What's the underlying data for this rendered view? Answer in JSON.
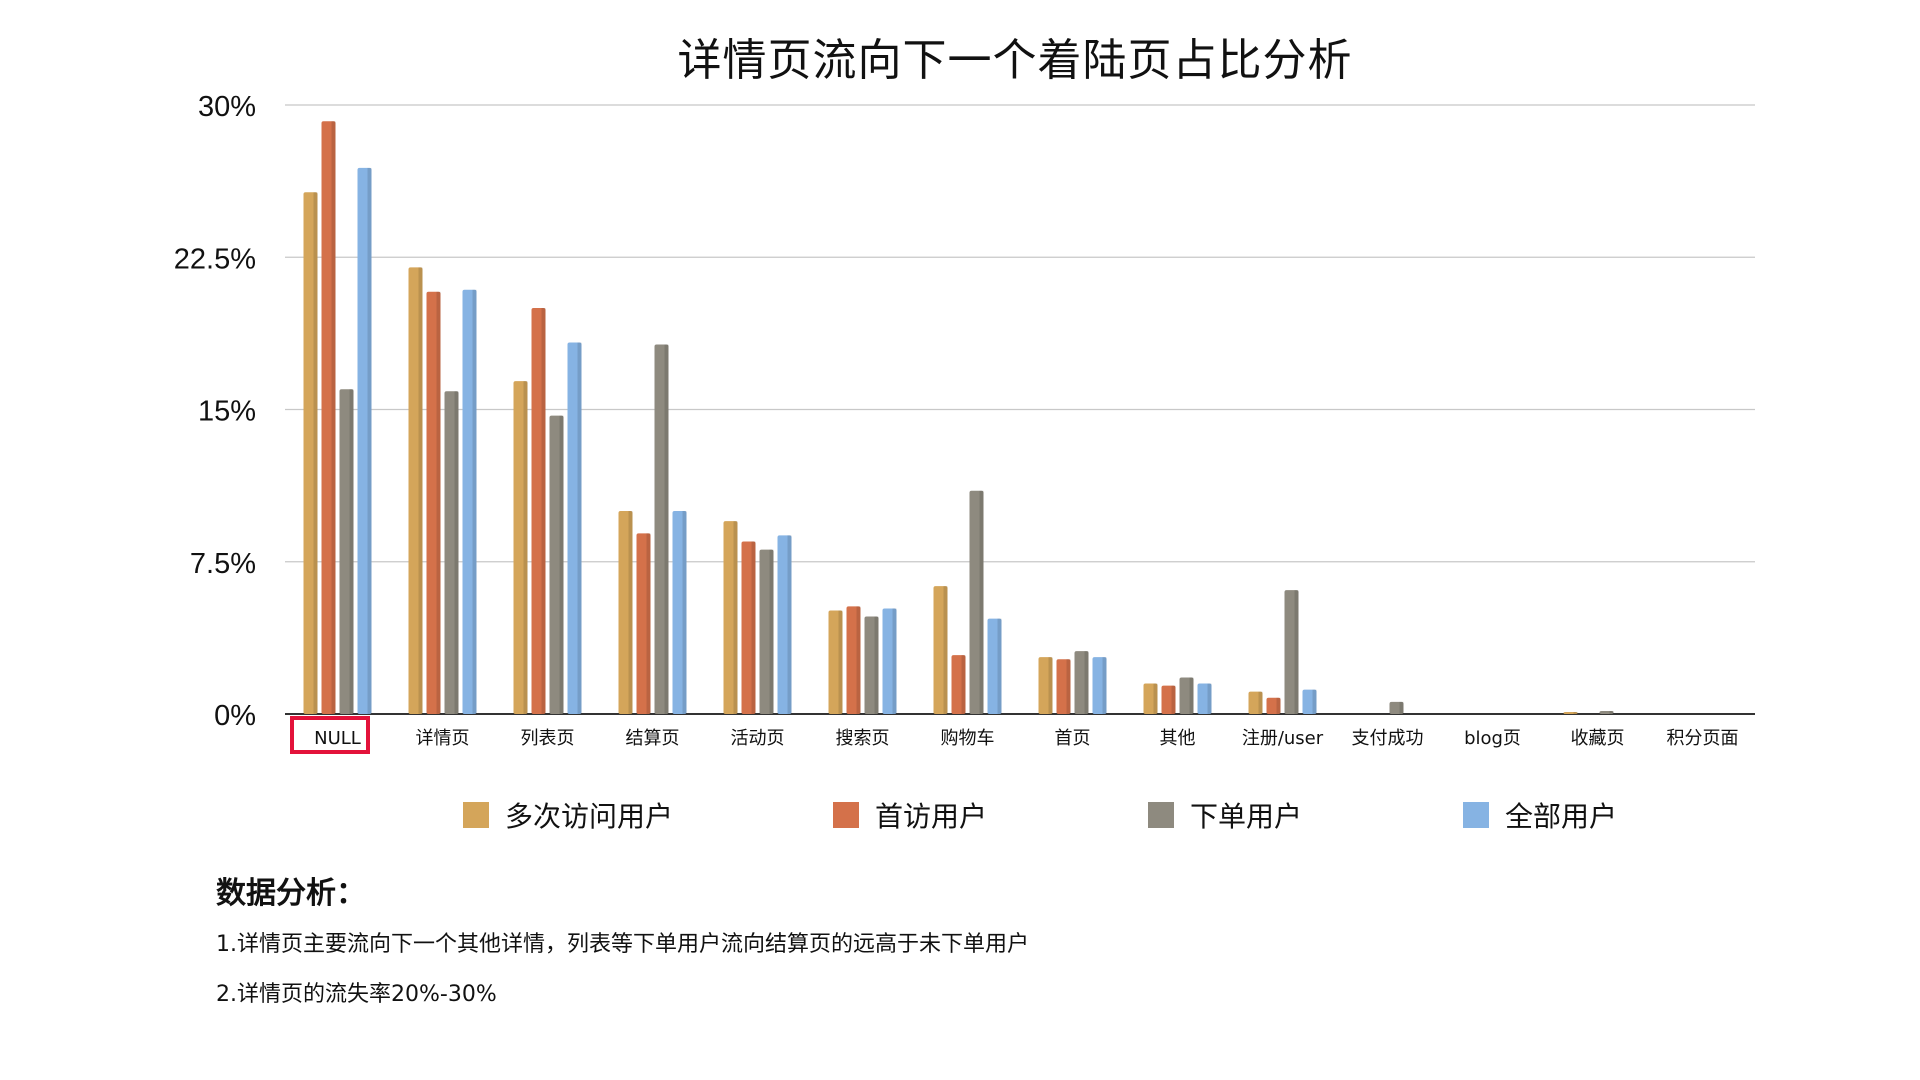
{
  "chart_data": {
    "type": "bar",
    "title": "详情页流向下一个着陆页占比分析",
    "categories": [
      "NULL",
      "详情页",
      "列表页",
      "结算页",
      "活动页",
      "搜索页",
      "购物车",
      "首页",
      "其他",
      "注册/user",
      "支付成功",
      "blog页",
      "收藏页",
      "积分页面"
    ],
    "series": [
      {
        "name": "多次访问用户",
        "color": "#d4a55a",
        "values": [
          25.7,
          22.0,
          16.4,
          10.0,
          9.5,
          5.1,
          6.3,
          2.8,
          1.5,
          1.1,
          0.0,
          0.0,
          0.1,
          0.0
        ]
      },
      {
        "name": "首访用户",
        "color": "#d4714a",
        "values": [
          29.2,
          20.8,
          20.0,
          8.9,
          8.5,
          5.3,
          2.9,
          2.7,
          1.4,
          0.8,
          0.0,
          0.0,
          0.0,
          0.0
        ]
      },
      {
        "name": "下单用户",
        "color": "#8e8a7f",
        "values": [
          16.0,
          15.9,
          14.7,
          18.2,
          8.1,
          4.8,
          11.0,
          3.1,
          1.8,
          6.1,
          0.6,
          0.0,
          0.15,
          0.0
        ]
      },
      {
        "name": "全部用户",
        "color": "#86b3e3",
        "values": [
          26.9,
          20.9,
          18.3,
          10.0,
          8.8,
          5.2,
          4.7,
          2.8,
          1.5,
          1.2,
          0.0,
          0.0,
          0.0,
          0.0
        ]
      }
    ],
    "yticks": [
      "0%",
      "7.5%",
      "15%",
      "22.5%",
      "30%"
    ],
    "ylim": [
      0,
      30
    ],
    "grid": true,
    "legend_position": "bottom",
    "highlighted_category": "NULL"
  },
  "analysis": {
    "heading": "数据分析：",
    "lines": [
      "1.详情页主要流向下一个其他详情，列表等下单用户流向结算页的远高于未下单用户",
      "2.详情页的流失率20%-30%"
    ]
  }
}
